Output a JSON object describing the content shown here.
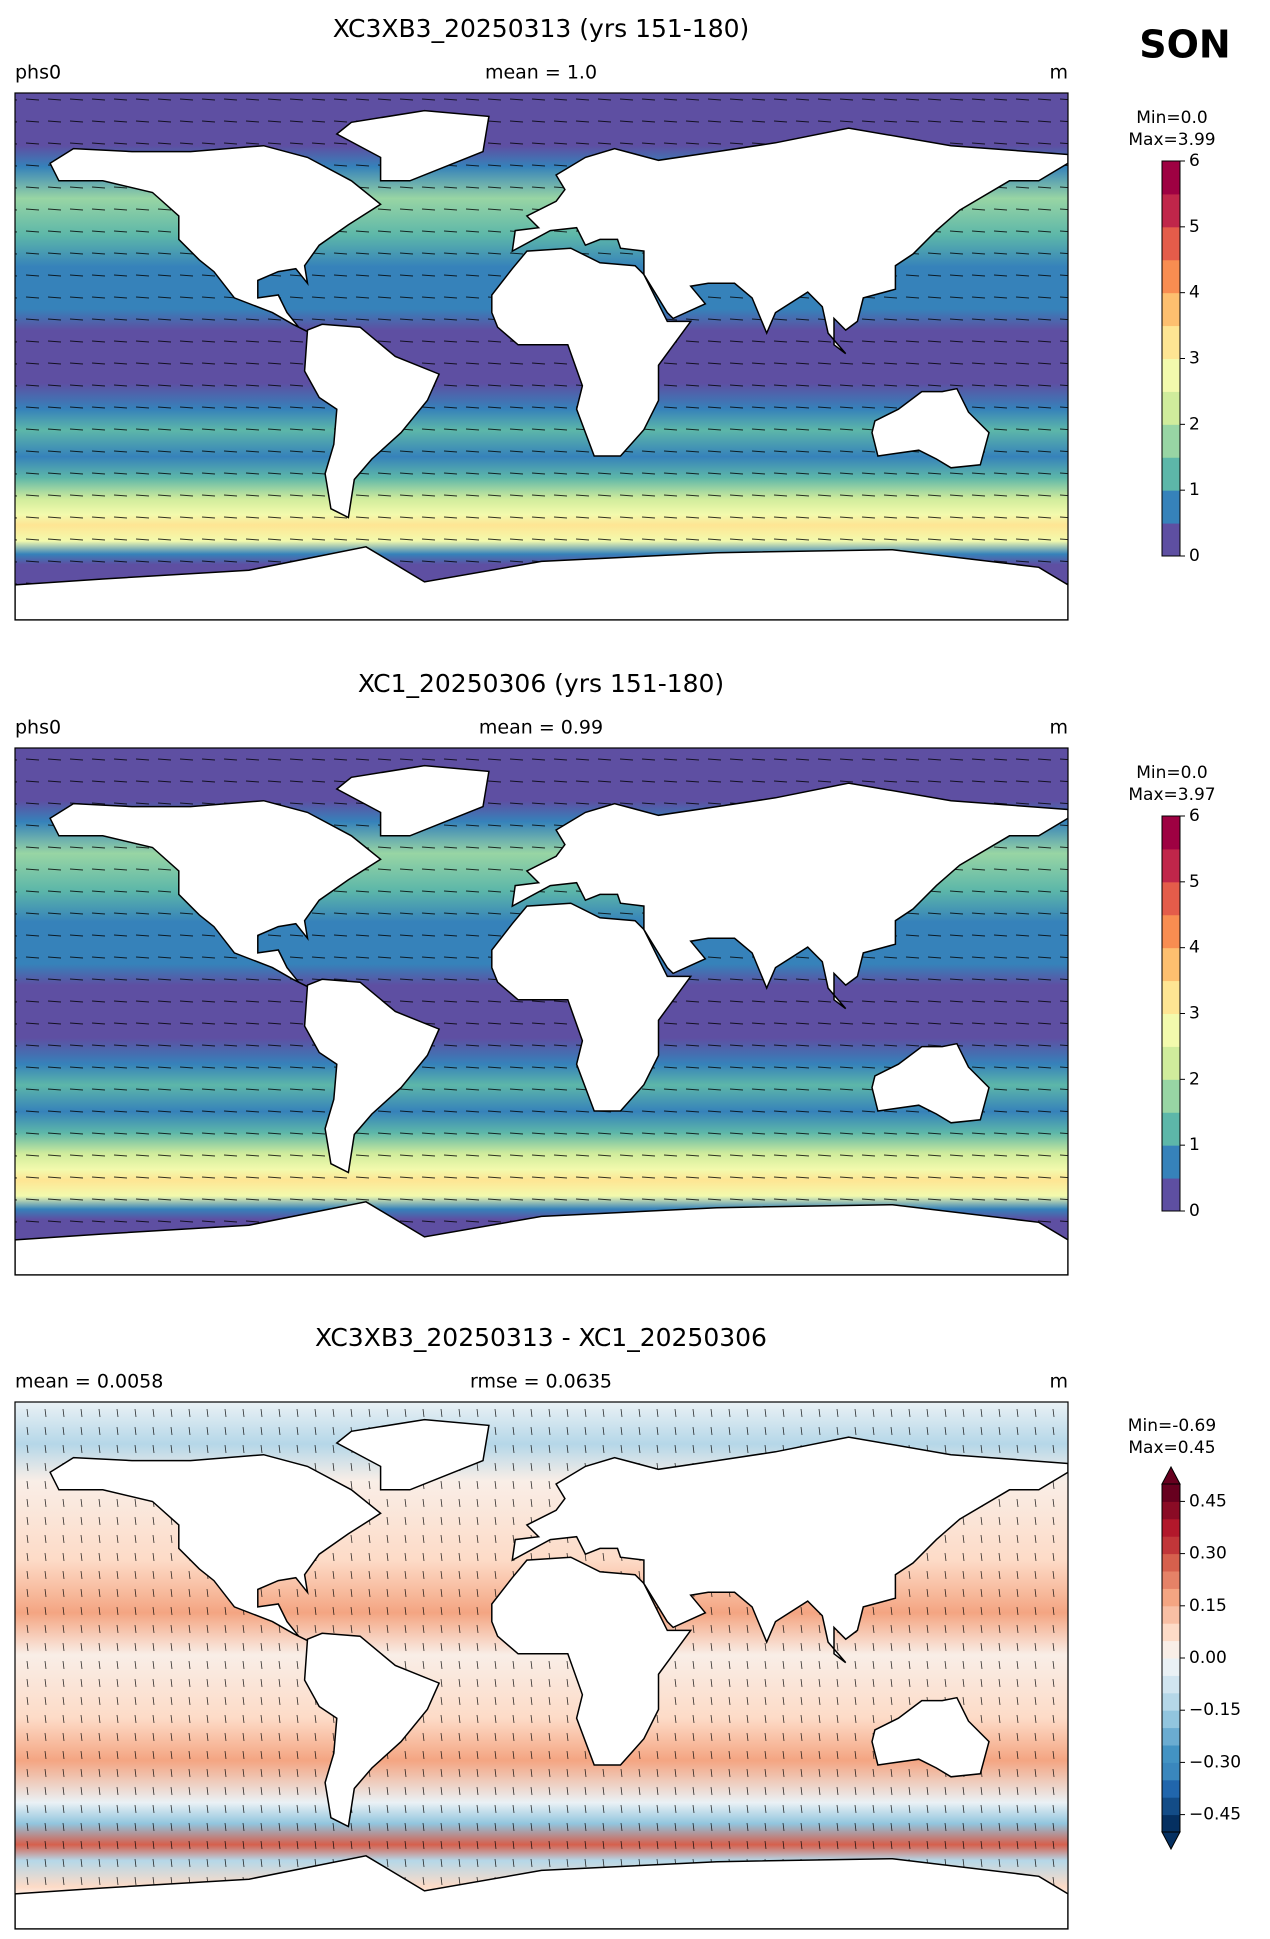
{
  "season": "SON",
  "chart_data": [
    {
      "type": "map",
      "title": "XC3XB3_20250313 (yrs 151-180)",
      "left_label": "phs0",
      "center_label": "mean = 1.0",
      "unit": "m",
      "min_label": "Min=0.0",
      "max_label": "Max=3.99",
      "clim": [
        0,
        6
      ],
      "cticks": [
        0,
        1,
        2,
        3,
        4,
        5,
        6
      ],
      "extend": "neither",
      "colors": [
        "#5e4fa2",
        "#3682ba",
        "#5db7a9",
        "#98d5a4",
        "#d0ec9c",
        "#f3faad",
        "#fee593",
        "#fdbf6f",
        "#f88d51",
        "#e45c4a",
        "#c0264a",
        "#9e0142"
      ]
    },
    {
      "type": "map",
      "title": "XC1_20250306 (yrs 151-180)",
      "left_label": "phs0",
      "center_label": "mean = 0.99",
      "unit": "m",
      "min_label": "Min=0.0",
      "max_label": "Max=3.97",
      "clim": [
        0,
        6
      ],
      "cticks": [
        0,
        1,
        2,
        3,
        4,
        5,
        6
      ],
      "extend": "neither",
      "colors": [
        "#5e4fa2",
        "#3682ba",
        "#5db7a9",
        "#98d5a4",
        "#d0ec9c",
        "#f3faad",
        "#fee593",
        "#fdbf6f",
        "#f88d51",
        "#e45c4a",
        "#c0264a",
        "#9e0142"
      ]
    },
    {
      "type": "map",
      "title": "XC3XB3_20250313 - XC1_20250306",
      "left_label": "mean = 0.0058",
      "center_label": "rmse = 0.0635",
      "unit": "m",
      "min_label": "Min=-0.69",
      "max_label": "Max=0.45",
      "clim": [
        -0.5,
        0.5
      ],
      "cticks": [
        {
          "value": -0.45,
          "label": "−0.45"
        },
        {
          "value": -0.3,
          "label": "−0.30"
        },
        {
          "value": -0.15,
          "label": "−0.15"
        },
        {
          "value": 0,
          "label": "0.00"
        },
        {
          "value": 0.15,
          "label": "0.15"
        },
        {
          "value": 0.3,
          "label": "0.30"
        },
        {
          "value": 0.45,
          "label": "0.45"
        }
      ],
      "extend": "both",
      "colors": [
        "#053061",
        "#134c87",
        "#2166ac",
        "#3a87bd",
        "#4393c3",
        "#6bacd1",
        "#92c5de",
        "#b5d7e8",
        "#d1e5f0",
        "#eaf1f5",
        "#f9eee7",
        "#fddbc7",
        "#f8bfa4",
        "#f4a582",
        "#e58267",
        "#d6604d",
        "#c13639",
        "#b2182b",
        "#8a0b25",
        "#67001f"
      ]
    }
  ]
}
